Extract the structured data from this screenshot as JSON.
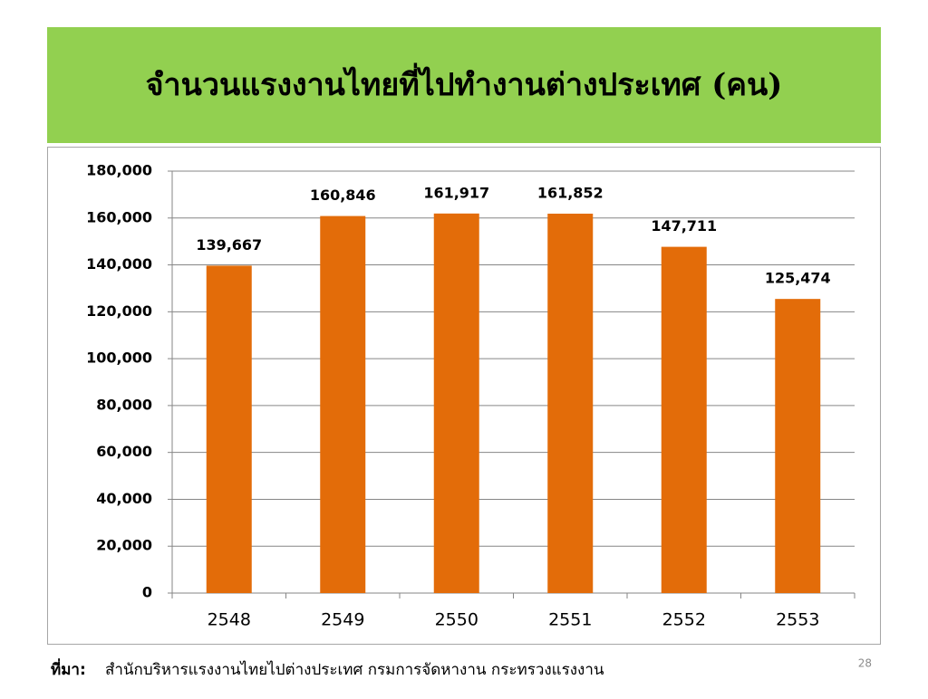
{
  "chart_data": {
    "type": "bar",
    "title": "จำนวนแรงงานไทยที่ไปทำงานต่างประเทศ (คน)",
    "categories": [
      "2548",
      "2549",
      "2550",
      "2551",
      "2552",
      "2553"
    ],
    "values": [
      139667,
      160846,
      161917,
      161852,
      147711,
      125474
    ],
    "value_labels": [
      "139,667",
      "160,846",
      "161,917",
      "161,852",
      "147,711",
      "125,474"
    ],
    "color": "#e36c09",
    "ylim": [
      0,
      180000
    ],
    "yticks": [
      0,
      {
        "value": 20000,
        "label": "20,000"
      },
      {
        "value": 40000,
        "label": "40,000"
      },
      {
        "value": 60000,
        "label": "60,000"
      },
      {
        "value": 80000,
        "label": "80,000"
      },
      {
        "value": 100000,
        "label": "100,000"
      },
      {
        "value": 120000,
        "label": "120,000"
      },
      {
        "value": 140000,
        "label": "140,000"
      },
      {
        "value": 160000,
        "label": "160,000"
      },
      {
        "value": 180000,
        "label": "180,000"
      }
    ],
    "grid": true,
    "source_label": "ที่มา:",
    "source": "สำนักบริหารแรงงานไทยไปต่างประเทศ กรมการจัดหางาน กระทรวงแรงงาน",
    "page_number": "28"
  }
}
